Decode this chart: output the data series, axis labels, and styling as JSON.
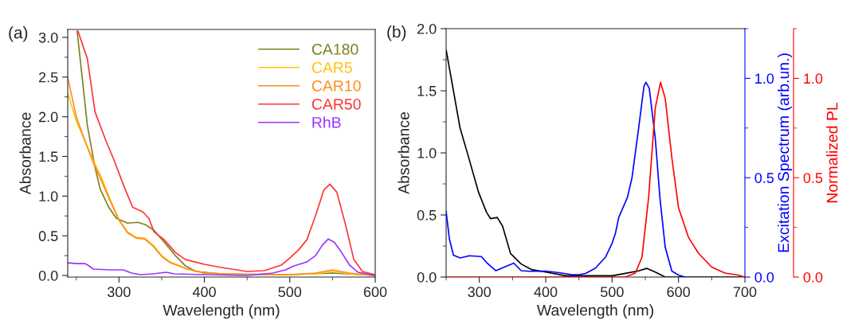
{
  "chart_data": [
    {
      "type": "line",
      "xlabel": "Wavelength (nm)",
      "ylabel": "Absorbance",
      "annotations": [
        "(a)"
      ],
      "xlim": [
        240,
        600
      ],
      "ylim": [
        -0.02,
        3.1
      ],
      "xticks": [
        300,
        400,
        500,
        600
      ],
      "yticks": [
        {
          "value": 0,
          "label": "0.0"
        },
        0.5,
        {
          "value": 1,
          "label": "1.0"
        },
        1.5,
        {
          "value": 2,
          "label": "2.0"
        },
        2.5,
        {
          "value": 3,
          "label": "3.0"
        }
      ],
      "grid": false,
      "legend": "top right",
      "series": [
        {
          "name": "CA180",
          "color": "#7f7f1f",
          "x": [
            251,
            257,
            263,
            272,
            278,
            288,
            297,
            310,
            322,
            331,
            341,
            353,
            366,
            378,
            390,
            420,
            500,
            550,
            600
          ],
          "values": [
            3.08,
            2.49,
            1.89,
            1.36,
            1.09,
            0.86,
            0.72,
            0.66,
            0.67,
            0.64,
            0.57,
            0.42,
            0.25,
            0.12,
            0.05,
            0.02,
            0.01,
            0.03,
            0.0
          ]
        },
        {
          "name": "CAR5",
          "color": "#ffc20e",
          "x": [
            240,
            250,
            260,
            270,
            280,
            290,
            300,
            310,
            320,
            330,
            340,
            350,
            360,
            380,
            400,
            450,
            500,
            530,
            550,
            570,
            600
          ],
          "values": [
            2.3,
            1.95,
            1.7,
            1.45,
            1.22,
            0.95,
            0.7,
            0.55,
            0.48,
            0.47,
            0.38,
            0.25,
            0.17,
            0.08,
            0.03,
            0.01,
            0.01,
            0.02,
            0.05,
            0.02,
            0.0
          ]
        },
        {
          "name": "CAR10",
          "color": "#ff8c1a",
          "x": [
            240,
            250,
            260,
            270,
            280,
            290,
            300,
            310,
            320,
            330,
            340,
            350,
            360,
            380,
            400,
            450,
            500,
            530,
            550,
            570,
            600
          ],
          "values": [
            2.5,
            2.0,
            1.7,
            1.42,
            1.18,
            0.93,
            0.7,
            0.54,
            0.47,
            0.46,
            0.37,
            0.24,
            0.16,
            0.08,
            0.03,
            0.01,
            0.01,
            0.03,
            0.07,
            0.03,
            0.0
          ]
        },
        {
          "name": "CAR50",
          "color": "#ff3333",
          "x": [
            252,
            263,
            272,
            285,
            294,
            306,
            316,
            328,
            335,
            341,
            353,
            366,
            378,
            400,
            420,
            450,
            470,
            490,
            500,
            510,
            520,
            530,
            540,
            547,
            555,
            565,
            575,
            585,
            600
          ],
          "values": [
            3.08,
            2.73,
            2.06,
            1.69,
            1.46,
            1.12,
            0.86,
            0.8,
            0.72,
            0.55,
            0.45,
            0.29,
            0.2,
            0.14,
            0.1,
            0.05,
            0.06,
            0.13,
            0.22,
            0.32,
            0.45,
            0.75,
            1.08,
            1.15,
            1.05,
            0.65,
            0.2,
            0.05,
            0.01
          ]
        },
        {
          "name": "RhB",
          "color": "#9933ff",
          "x": [
            240,
            250,
            260,
            265,
            270,
            290,
            305,
            315,
            325,
            340,
            355,
            365,
            400,
            450,
            480,
            495,
            505,
            520,
            530,
            538,
            545,
            552,
            560,
            570,
            580,
            600
          ],
          "values": [
            0.16,
            0.15,
            0.15,
            0.12,
            0.08,
            0.07,
            0.07,
            0.03,
            0.01,
            0.02,
            0.04,
            0.02,
            0.01,
            0.0,
            0.03,
            0.07,
            0.12,
            0.17,
            0.25,
            0.38,
            0.46,
            0.42,
            0.3,
            0.13,
            0.04,
            0.0
          ]
        }
      ]
    },
    {
      "type": "line",
      "xlabel": "Wavelength (nm)",
      "ylabel": "Absorbance",
      "y2label": "Excitation Spectrum (arb.un.)",
      "y3label": "Normalized PL",
      "annotations": [
        "(b)"
      ],
      "xlim": [
        250,
        700
      ],
      "ylim": [
        0,
        2.0
      ],
      "y2lim": [
        0,
        1.25
      ],
      "y3lim": [
        0,
        1.25
      ],
      "xticks": [
        300,
        400,
        500,
        600,
        700
      ],
      "yticks": [
        {
          "value": 0,
          "label": "0.0"
        },
        0.5,
        {
          "value": 1,
          "label": "1.0"
        },
        1.5,
        {
          "value": 2,
          "label": "2.0"
        }
      ],
      "y2ticks": [
        {
          "value": 0,
          "label": "0.0"
        },
        0.5,
        {
          "value": 1,
          "label": "1.0"
        }
      ],
      "y3ticks": [
        {
          "value": 0,
          "label": "0.0"
        },
        0.5,
        {
          "value": 1,
          "label": "1.0"
        }
      ],
      "grid": false,
      "legend": false,
      "series": [
        {
          "color": "#000000",
          "x": [
            250,
            271,
            283,
            299,
            311,
            317,
            327,
            335,
            347,
            363,
            379,
            400,
            430,
            500,
            520,
            540,
            552,
            565,
            580,
            700
          ],
          "values": [
            1.83,
            1.2,
            0.98,
            0.68,
            0.52,
            0.47,
            0.48,
            0.41,
            0.19,
            0.105,
            0.06,
            0.04,
            0.01,
            0.01,
            0.03,
            0.05,
            0.07,
            0.04,
            0.0,
            0.0
          ]
        },
        {
          "color": "#0000ff",
          "axis": "y2",
          "x": [
            250,
            255,
            261,
            271,
            285,
            303,
            311,
            325,
            339,
            352,
            363,
            375,
            400,
            420,
            440,
            450,
            460,
            475,
            490,
            500,
            505,
            510,
            523,
            530,
            540,
            548,
            551,
            556,
            565,
            572,
            580,
            590,
            600,
            610
          ],
          "values": [
            0.33,
            0.19,
            0.11,
            0.096,
            0.107,
            0.103,
            0.073,
            0.032,
            0.052,
            0.07,
            0.032,
            0.029,
            0.03,
            0.022,
            0.012,
            0.012,
            0.018,
            0.045,
            0.1,
            0.17,
            0.22,
            0.3,
            0.4,
            0.5,
            0.75,
            0.96,
            0.98,
            0.95,
            0.7,
            0.4,
            0.15,
            0.03,
            0.01,
            0.0
          ]
        },
        {
          "color": "#ff0000",
          "axis": "y3",
          "x": [
            250,
            520,
            535,
            545,
            555,
            565,
            573,
            580,
            590,
            600,
            615,
            630,
            650,
            670,
            690,
            700
          ],
          "values": [
            0.0,
            0.0,
            0.02,
            0.1,
            0.4,
            0.85,
            0.98,
            0.9,
            0.6,
            0.35,
            0.2,
            0.12,
            0.05,
            0.02,
            0.01,
            0.0
          ]
        }
      ]
    }
  ]
}
